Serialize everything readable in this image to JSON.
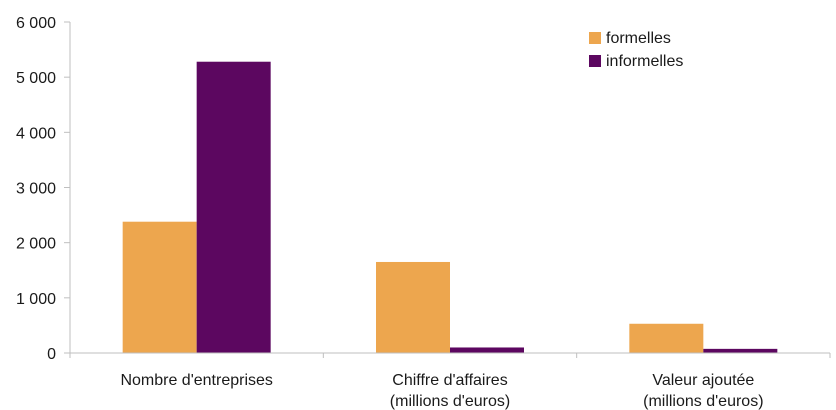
{
  "chart_data": {
    "type": "bar",
    "categories": [
      [
        "Nombre d'entreprises"
      ],
      [
        "Chiffre d'affaires",
        "(millions d'euros)"
      ],
      [
        "Valeur ajoutée",
        "(millions d'euros)"
      ]
    ],
    "series": [
      {
        "name": "formelles",
        "color": "#EDA64E",
        "values": [
          2380,
          1650,
          530
        ]
      },
      {
        "name": "informelles",
        "color": "#5C0760",
        "values": [
          5280,
          100,
          75
        ]
      }
    ],
    "ylim": [
      0,
      6000
    ],
    "yticks": [
      0,
      1000,
      2000,
      3000,
      4000,
      5000,
      6000
    ],
    "ytick_labels": [
      "0",
      "1 000",
      "2 000",
      "3 000",
      "4 000",
      "5 000",
      "6 000"
    ],
    "title": "",
    "xlabel": "",
    "ylabel": "",
    "grid": false,
    "legend_position": "top-right",
    "axis_color": "#BFBFBF"
  }
}
